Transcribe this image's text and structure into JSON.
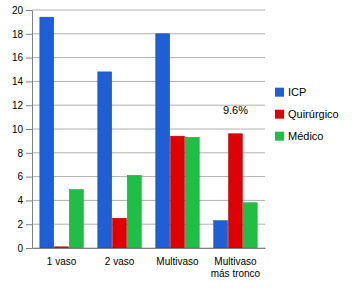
{
  "chart_data": {
    "type": "bar",
    "categories": [
      "1 vaso",
      "2 vaso",
      "Multivaso",
      "Multivaso más tronco"
    ],
    "series": [
      {
        "name": "ICP",
        "color": "#1f5fd6",
        "values": [
          19.4,
          14.8,
          18.0,
          2.3
        ]
      },
      {
        "name": "Quirúrgico",
        "color": "#e00000",
        "values": [
          0.1,
          2.5,
          9.4,
          9.6
        ]
      },
      {
        "name": "Médico",
        "color": "#1fbf45",
        "values": [
          4.9,
          6.1,
          9.3,
          3.8
        ]
      }
    ],
    "annotations": [
      {
        "text": "9.6%",
        "x": "Multivaso más tronco",
        "y": 9.6
      }
    ],
    "ylim": [
      0,
      20
    ],
    "yticks": [
      0,
      2,
      4,
      6,
      8,
      10,
      12,
      14,
      16,
      18,
      20
    ],
    "grid": true,
    "legend": "right"
  }
}
